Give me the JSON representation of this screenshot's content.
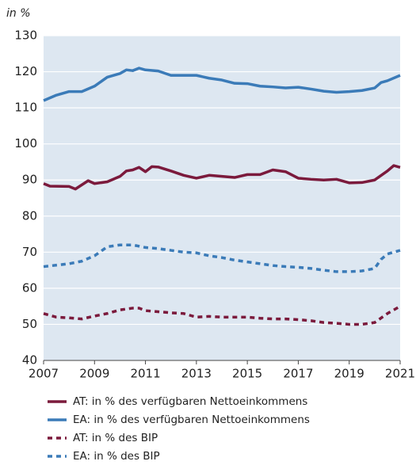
{
  "chart_data": {
    "type": "line",
    "y_label": "in %",
    "xlim": [
      2007,
      2021
    ],
    "xticks": [
      2007,
      2009,
      2011,
      2013,
      2015,
      2017,
      2019,
      2021
    ],
    "ylim": [
      40,
      130
    ],
    "yticks": [
      40,
      50,
      60,
      70,
      80,
      90,
      100,
      110,
      120,
      130
    ],
    "grid": true,
    "series": [
      {
        "name": "AT: in % des verfügbaren Nettoeinkommens",
        "color": "#7b1a3c",
        "linestyle": "solid",
        "x": [
          2007,
          2007.25,
          2008,
          2008.25,
          2008.75,
          2009,
          2009.5,
          2010,
          2010.25,
          2010.5,
          2010.75,
          2011,
          2011.25,
          2011.5,
          2012,
          2012.5,
          2013,
          2013.5,
          2014,
          2014.5,
          2015,
          2015.5,
          2016,
          2016.5,
          2017,
          2017.5,
          2018,
          2018.5,
          2019,
          2019.5,
          2020,
          2020.5,
          2020.75,
          2021
        ],
        "values": [
          89,
          88.3,
          88.2,
          87.5,
          89.8,
          89,
          89.5,
          91,
          92.5,
          92.8,
          93.5,
          92.3,
          93.7,
          93.6,
          92.5,
          91.3,
          90.5,
          91.3,
          91,
          90.7,
          91.5,
          91.5,
          92.8,
          92.3,
          90.5,
          90.2,
          90,
          90.2,
          89.2,
          89.3,
          90,
          92.5,
          94,
          93.5
        ]
      },
      {
        "name": "EA: in % des verfügbaren Nettoeinkommens",
        "color": "#3b7bb8",
        "linestyle": "solid",
        "x": [
          2007,
          2007.5,
          2008,
          2008.5,
          2009,
          2009.5,
          2010,
          2010.25,
          2010.5,
          2010.75,
          2011,
          2011.5,
          2012,
          2012.5,
          2013,
          2013.5,
          2014,
          2014.5,
          2015,
          2015.5,
          2016,
          2016.5,
          2017,
          2017.5,
          2018,
          2018.5,
          2019,
          2019.5,
          2020,
          2020.25,
          2020.5,
          2021
        ],
        "values": [
          112,
          113.5,
          114.5,
          114.5,
          116,
          118.5,
          119.5,
          120.5,
          120.3,
          121,
          120.5,
          120.2,
          119,
          119,
          119,
          118.2,
          117.7,
          116.8,
          116.7,
          116,
          115.8,
          115.5,
          115.7,
          115.2,
          114.6,
          114.3,
          114.5,
          114.8,
          115.5,
          117,
          117.5,
          119
        ]
      },
      {
        "name": "AT: in % des BIP",
        "color": "#7b1a3c",
        "linestyle": "dashed",
        "x": [
          2007,
          2007.5,
          2008,
          2008.5,
          2009,
          2009.5,
          2010,
          2010.5,
          2010.75,
          2011,
          2011.5,
          2012,
          2012.5,
          2013,
          2013.5,
          2014,
          2014.5,
          2015,
          2015.5,
          2016,
          2016.5,
          2017,
          2017.5,
          2018,
          2018.5,
          2019,
          2019.5,
          2020,
          2020.5,
          2021
        ],
        "values": [
          53,
          52,
          51.8,
          51.5,
          52.3,
          53,
          54,
          54.5,
          54.5,
          53.8,
          53.5,
          53.2,
          53,
          52,
          52.2,
          52,
          52,
          52,
          51.7,
          51.5,
          51.5,
          51.3,
          51,
          50.5,
          50.3,
          50,
          50,
          50.5,
          53,
          55
        ]
      },
      {
        "name": "EA: in % des BIP",
        "color": "#3b7bb8",
        "linestyle": "dashed",
        "x": [
          2007,
          2008,
          2008.5,
          2009,
          2009.5,
          2010,
          2010.5,
          2011,
          2011.5,
          2012,
          2012.5,
          2013,
          2013.5,
          2014,
          2014.5,
          2015,
          2015.5,
          2016,
          2016.5,
          2017,
          2017.5,
          2018,
          2018.5,
          2019,
          2019.5,
          2020,
          2020.25,
          2020.5,
          2021
        ],
        "values": [
          66,
          66.8,
          67.5,
          69,
          71.5,
          72,
          72,
          71.3,
          71,
          70.5,
          70,
          69.8,
          69,
          68.5,
          67.8,
          67.3,
          66.8,
          66.3,
          66,
          65.8,
          65.5,
          65,
          64.6,
          64.6,
          64.8,
          65.5,
          68,
          69.5,
          70.5
        ]
      }
    ]
  }
}
